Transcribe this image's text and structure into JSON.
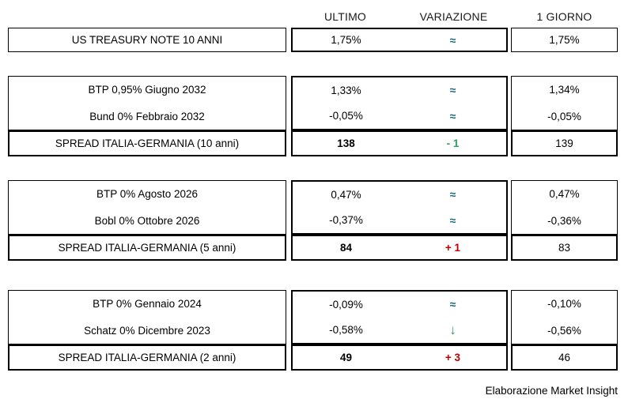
{
  "header": {
    "col_ultimo": "ULTIMO",
    "col_variazione": "VARIAZIONE",
    "col_giorno": "1 GIORNO"
  },
  "colors": {
    "flat_teal": "#1B6A80",
    "down_green": "#2E9E64",
    "up_red": "#C00000",
    "border": "#000000"
  },
  "sections": [
    {
      "rows": [
        {
          "label": "US TREASURY NOTE 10 ANNI",
          "ultimo": "1,75%",
          "variazione": {
            "symbol": "≈",
            "color": "#1B6A80"
          },
          "giorno": "1,75%"
        }
      ]
    },
    {
      "rows": [
        {
          "label": "BTP 0,95% Giugno 2032",
          "ultimo": "1,33%",
          "variazione": {
            "symbol": "≈",
            "color": "#1B6A80"
          },
          "giorno": "1,34%"
        },
        {
          "label": "Bund 0% Febbraio 2032",
          "ultimo": "-0,05%",
          "variazione": {
            "symbol": "≈",
            "color": "#1B6A80"
          },
          "giorno": "-0,05%"
        }
      ],
      "spread": {
        "label": "SPREAD ITALIA-GERMANIA (10 anni)",
        "ultimo": "138",
        "variazione": {
          "symbol": "- 1",
          "color": "#2E9E64"
        },
        "giorno": "139"
      }
    },
    {
      "rows": [
        {
          "label": "BTP 0% Agosto 2026",
          "ultimo": "0,47%",
          "variazione": {
            "symbol": "≈",
            "color": "#1B6A80"
          },
          "giorno": "0,47%"
        },
        {
          "label": "Bobl 0% Ottobre 2026",
          "ultimo": "-0,37%",
          "variazione": {
            "symbol": "≈",
            "color": "#1B6A80"
          },
          "giorno": "-0,36%"
        }
      ],
      "spread": {
        "label": "SPREAD ITALIA-GERMANIA (5 anni)",
        "ultimo": "84",
        "variazione": {
          "symbol": "+ 1",
          "color": "#C00000"
        },
        "giorno": "83"
      }
    },
    {
      "rows": [
        {
          "label": "BTP 0% Gennaio 2024",
          "ultimo": "-0,09%",
          "variazione": {
            "symbol": "≈",
            "color": "#1B6A80"
          },
          "giorno": "-0,10%"
        },
        {
          "label": "Schatz 0% Dicembre 2023",
          "ultimo": "-0,58%",
          "variazione": {
            "symbol": "↓",
            "color": "#2E9E64"
          },
          "giorno": "-0,56%"
        }
      ],
      "spread": {
        "label": "SPREAD ITALIA-GERMANIA (2 anni)",
        "ultimo": "49",
        "variazione": {
          "symbol": "+ 3",
          "color": "#C00000"
        },
        "giorno": "46"
      }
    }
  ],
  "footer": {
    "credit": "Elaborazione Market Insight"
  }
}
